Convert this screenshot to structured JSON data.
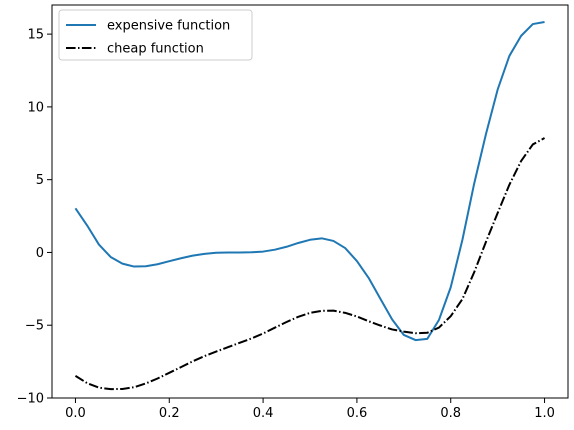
{
  "chart_data": {
    "type": "line",
    "title": "",
    "xlabel": "",
    "ylabel": "",
    "xlim": [
      -0.05,
      1.05
    ],
    "ylim": [
      -10,
      17
    ],
    "x_ticks": [
      0.0,
      0.2,
      0.4,
      0.6,
      0.8,
      1.0
    ],
    "x_tick_labels": [
      "0.0",
      "0.2",
      "0.4",
      "0.6",
      "0.8",
      "1.0"
    ],
    "y_ticks": [
      -10,
      -5,
      0,
      5,
      10,
      15
    ],
    "y_tick_labels": [
      "−10",
      "−5",
      "0",
      "5",
      "10",
      "15"
    ],
    "grid": false,
    "legend_position": "upper-left",
    "series": [
      {
        "name": "expensive function",
        "color": "#1f77b4",
        "linestyle": "solid",
        "x": [
          0.0,
          0.025,
          0.05,
          0.075,
          0.1,
          0.125,
          0.15,
          0.175,
          0.2,
          0.225,
          0.25,
          0.275,
          0.3,
          0.325,
          0.35,
          0.375,
          0.4,
          0.425,
          0.45,
          0.475,
          0.5,
          0.525,
          0.55,
          0.575,
          0.6,
          0.625,
          0.65,
          0.675,
          0.7,
          0.725,
          0.75,
          0.775,
          0.8,
          0.825,
          0.85,
          0.875,
          0.9,
          0.925,
          0.95,
          0.975,
          1.0
        ],
        "values": [
          3.03,
          1.85,
          0.54,
          -0.31,
          -0.77,
          -0.97,
          -0.95,
          -0.81,
          -0.6,
          -0.4,
          -0.22,
          -0.1,
          -0.02,
          0.0,
          0.0,
          0.01,
          0.06,
          0.19,
          0.39,
          0.65,
          0.87,
          0.97,
          0.79,
          0.3,
          -0.59,
          -1.75,
          -3.18,
          -4.6,
          -5.67,
          -6.02,
          -5.94,
          -4.63,
          -2.39,
          0.88,
          4.73,
          8.12,
          11.19,
          13.5,
          14.88,
          15.69,
          15.83
        ]
      },
      {
        "name": "cheap function",
        "color": "#000000",
        "linestyle": "dashdot",
        "x": [
          0.0,
          0.025,
          0.05,
          0.075,
          0.1,
          0.125,
          0.15,
          0.175,
          0.2,
          0.225,
          0.25,
          0.275,
          0.3,
          0.325,
          0.35,
          0.375,
          0.4,
          0.425,
          0.45,
          0.475,
          0.5,
          0.525,
          0.55,
          0.575,
          0.6,
          0.625,
          0.65,
          0.675,
          0.7,
          0.725,
          0.75,
          0.775,
          0.8,
          0.825,
          0.85,
          0.875,
          0.9,
          0.925,
          0.95,
          0.975,
          1.0
        ],
        "values": [
          -8.48,
          -8.98,
          -9.29,
          -9.39,
          -9.38,
          -9.26,
          -9.0,
          -8.66,
          -8.27,
          -7.88,
          -7.48,
          -7.12,
          -6.81,
          -6.51,
          -6.21,
          -5.91,
          -5.57,
          -5.17,
          -4.78,
          -4.42,
          -4.15,
          -4.01,
          -4.0,
          -4.15,
          -4.4,
          -4.73,
          -5.02,
          -5.29,
          -5.44,
          -5.55,
          -5.52,
          -5.16,
          -4.38,
          -3.2,
          -1.36,
          0.72,
          2.71,
          4.65,
          6.28,
          7.42,
          7.86
        ]
      }
    ]
  }
}
